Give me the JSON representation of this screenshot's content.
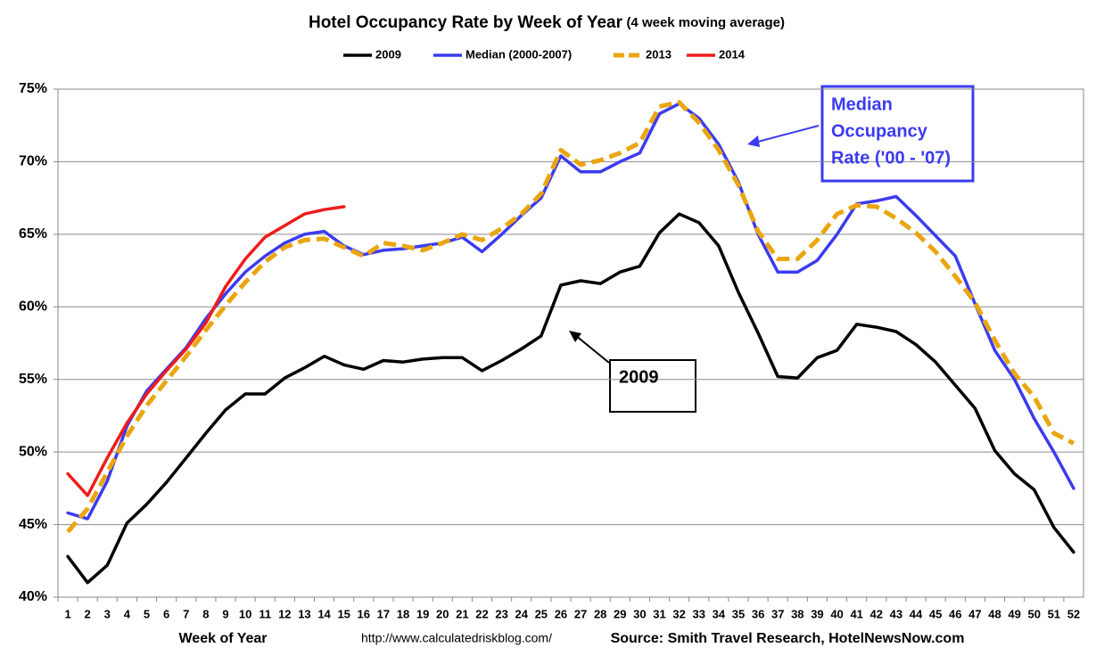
{
  "chart_data": {
    "type": "line",
    "title": "Hotel Occupancy Rate by  Week of Year",
    "subtitle": "(4 week moving average)",
    "x_label": "Week of Year",
    "url": "http://www.calculatedriskblog.com/",
    "source": "Source: Smith Travel Research, HotelNewsNow.com",
    "annotations": [
      {
        "lines": [
          "Median",
          "Occupancy",
          "Rate ('00 - '07)"
        ],
        "color": "#3b3bf0"
      },
      {
        "lines": [
          "2009"
        ],
        "color": "#000000"
      }
    ],
    "categories": [
      1,
      2,
      3,
      4,
      5,
      6,
      7,
      8,
      9,
      10,
      11,
      12,
      13,
      14,
      15,
      16,
      17,
      18,
      19,
      20,
      21,
      22,
      23,
      24,
      25,
      26,
      27,
      28,
      29,
      30,
      31,
      32,
      33,
      34,
      35,
      36,
      37,
      38,
      39,
      40,
      41,
      42,
      43,
      44,
      45,
      46,
      47,
      48,
      49,
      50,
      51,
      52
    ],
    "series": [
      {
        "name": "2009",
        "color": "#000000",
        "dashed": false,
        "values": [
          42.8,
          41.0,
          42.2,
          45.1,
          46.4,
          47.9,
          49.6,
          51.3,
          52.9,
          54.0,
          54.0,
          55.1,
          55.8,
          56.6,
          56.0,
          55.7,
          56.3,
          56.2,
          56.4,
          56.5,
          56.5,
          55.6,
          56.3,
          57.1,
          58.0,
          61.5,
          61.8,
          61.6,
          62.4,
          62.8,
          65.1,
          66.4,
          65.8,
          64.2,
          61.0,
          58.2,
          55.2,
          55.1,
          56.5,
          57.0,
          58.8,
          58.6,
          58.3,
          57.4,
          56.2,
          54.6,
          53.0,
          50.1,
          48.5,
          47.4,
          44.8,
          43.1
        ]
      },
      {
        "name": "Median (2000-2007)",
        "color": "#3b3bf0",
        "dashed": false,
        "values": [
          45.8,
          45.4,
          48.0,
          51.8,
          54.2,
          55.7,
          57.2,
          59.2,
          60.9,
          62.4,
          63.5,
          64.4,
          65.0,
          65.2,
          64.2,
          63.6,
          63.9,
          64.0,
          64.2,
          64.4,
          64.8,
          63.8,
          65.0,
          66.3,
          67.5,
          70.4,
          69.3,
          69.3,
          70.0,
          70.6,
          73.3,
          74.0,
          73.0,
          71.2,
          68.6,
          65.0,
          62.4,
          62.4,
          63.2,
          65.0,
          67.1,
          67.3,
          67.6,
          66.3,
          64.9,
          63.5,
          60.2,
          57.0,
          55.0,
          52.3,
          50.0,
          47.5
        ]
      },
      {
        "name": "2013",
        "color": "#eaa50f",
        "dashed": true,
        "values": [
          44.5,
          46.1,
          48.6,
          51.1,
          53.2,
          54.9,
          56.6,
          58.4,
          60.1,
          61.7,
          63.1,
          64.1,
          64.6,
          64.7,
          64.1,
          63.5,
          64.4,
          64.2,
          63.9,
          64.4,
          65.0,
          64.6,
          65.4,
          66.4,
          67.8,
          70.8,
          69.8,
          70.1,
          70.6,
          71.3,
          73.8,
          74.1,
          72.7,
          70.8,
          68.4,
          65.2,
          63.3,
          63.3,
          64.6,
          66.4,
          67.0,
          66.9,
          66.1,
          65.1,
          63.8,
          62.1,
          60.3,
          57.7,
          55.4,
          53.8,
          51.3,
          50.6
        ]
      },
      {
        "name": "2014",
        "color": "#ee1c1c",
        "dashed": false,
        "values": [
          48.5,
          47.0,
          49.6,
          52.0,
          54.0,
          55.6,
          57.1,
          58.9,
          61.4,
          63.3,
          64.8,
          65.6,
          66.4,
          66.7,
          66.9,
          null,
          null,
          null,
          null,
          null,
          null,
          null,
          null,
          null,
          null,
          null,
          null,
          null,
          null,
          null,
          null,
          null,
          null,
          null,
          null,
          null,
          null,
          null,
          null,
          null,
          null,
          null,
          null,
          null,
          null,
          null,
          null,
          null,
          null,
          null,
          null,
          null
        ]
      }
    ],
    "ylim": [
      40,
      75
    ],
    "yticks": [
      {
        "value": 40,
        "label": "40%"
      },
      {
        "value": 45,
        "label": "45%"
      },
      {
        "value": 50,
        "label": "50%"
      },
      {
        "value": 55,
        "label": "55%"
      },
      {
        "value": 60,
        "label": "60%"
      },
      {
        "value": 65,
        "label": "65%"
      },
      {
        "value": 70,
        "label": "70%"
      },
      {
        "value": 75,
        "label": "75%"
      }
    ],
    "grid": true,
    "legend": "top"
  }
}
